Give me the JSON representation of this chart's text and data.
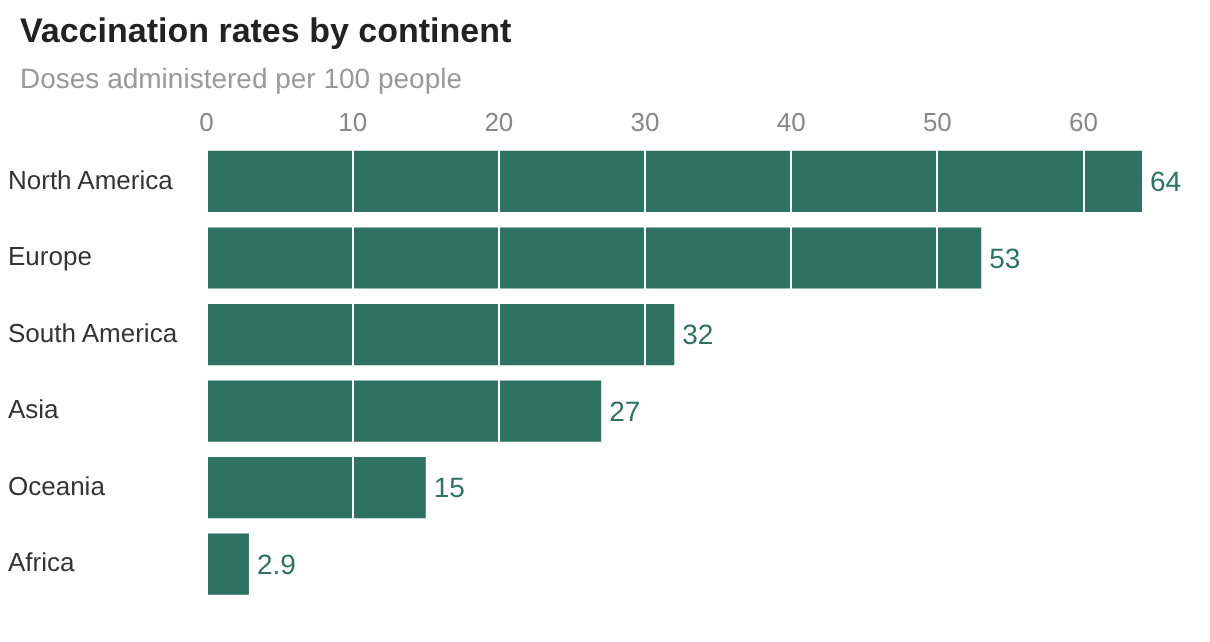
{
  "chart_data": {
    "type": "bar",
    "orientation": "horizontal",
    "title": "Vaccination rates by continent",
    "subtitle": "Doses administered per 100 people",
    "categories": [
      "North America",
      "Europe",
      "South America",
      "Asia",
      "Oceania",
      "Africa"
    ],
    "values": [
      64,
      53,
      32,
      27,
      15,
      2.9
    ],
    "color": "#2e7262",
    "xlim": [
      0,
      64
    ],
    "xticks": [
      0,
      10,
      20,
      30,
      40,
      50,
      60
    ],
    "grid": "x",
    "data_labels": true
  }
}
